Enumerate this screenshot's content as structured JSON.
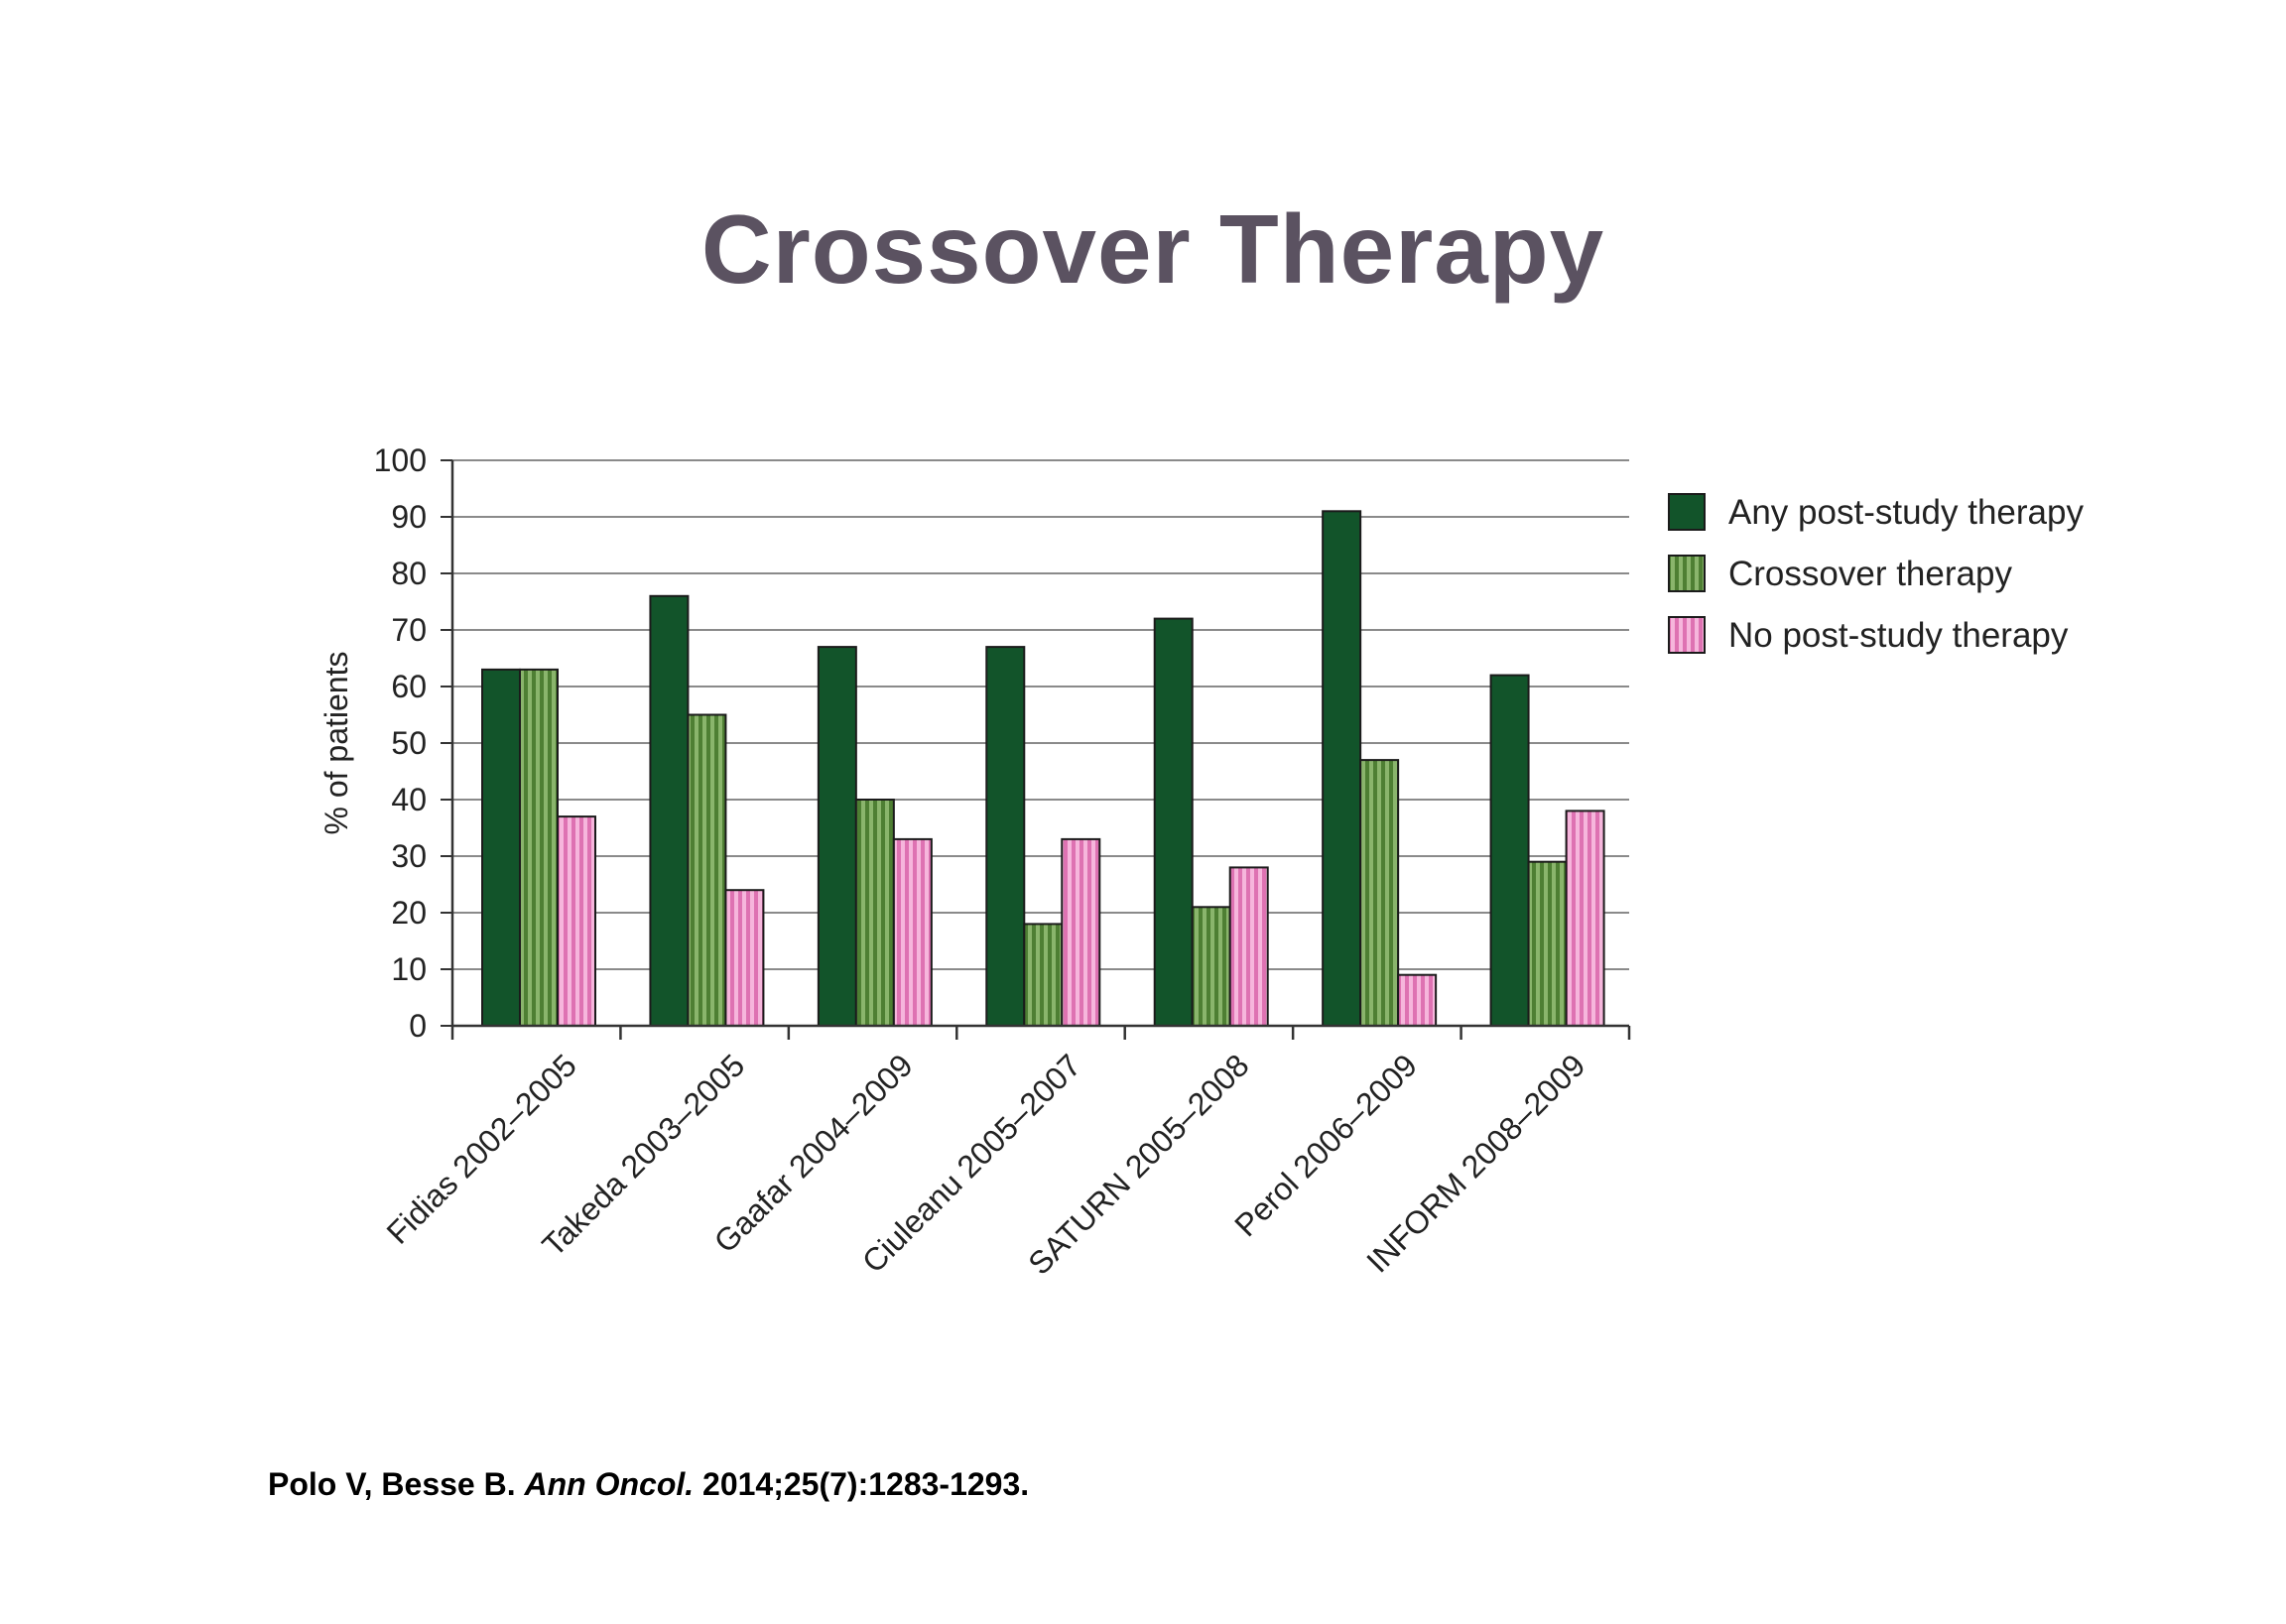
{
  "slide": {
    "title": "Crossover Therapy",
    "title_color": "#5b5261"
  },
  "citation": {
    "authors": "Polo V, Besse B.",
    "journal": "Ann Oncol.",
    "reference": "2014;25(7):1283-1293."
  },
  "chart_data": {
    "type": "bar",
    "title": "",
    "xlabel": "",
    "ylabel": "% of patients",
    "ylim": [
      0,
      100
    ],
    "yticks": [
      0,
      10,
      20,
      30,
      40,
      50,
      60,
      70,
      80,
      90,
      100
    ],
    "grid": true,
    "legend_position": "top-right",
    "categories": [
      "Fidias 2002–2005",
      "Takeda 2003–2005",
      "Gaafar 2004–2009",
      "Ciuleanu 2005–2007",
      "SATURN 2005–2008",
      "Perol 2006–2009",
      "INFORM 2008–2009"
    ],
    "series": [
      {
        "name": "Any post-study therapy",
        "color": "#12542a",
        "pattern": "solid",
        "values": [
          63,
          76,
          67,
          67,
          72,
          91,
          62
        ]
      },
      {
        "name": "Crossover therapy",
        "color": "#6a9a46",
        "pattern": "green-stripes",
        "values": [
          63,
          55,
          40,
          18,
          21,
          47,
          29
        ]
      },
      {
        "name": "No post-study therapy",
        "color": "#e586bf",
        "pattern": "pink-stripes",
        "values": [
          37,
          24,
          33,
          33,
          28,
          9,
          38
        ]
      }
    ]
  }
}
